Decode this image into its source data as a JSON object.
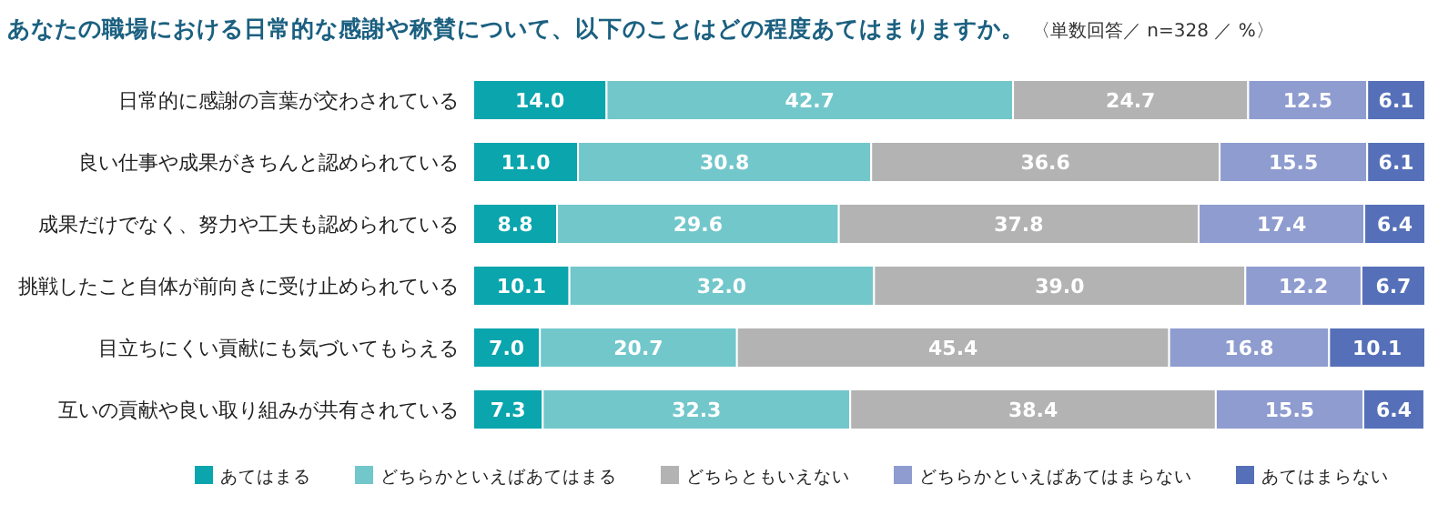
{
  "chart_data": {
    "type": "bar",
    "orientation": "horizontal",
    "stacked": true,
    "title": "あなたの職場における日常的な感謝や称賛について、以下のことはどの程度あてはまりますか。",
    "subtitle": "〈単数回答／ n=328 ／ %〉",
    "categories": [
      "日常的に感謝の言葉が交わされている",
      "良い仕事や成果がきちんと認められている",
      "成果だけでなく、努力や工夫も認められている",
      "挑戦したこと自体が前向きに受け止められている",
      "目立ちにくい貢献にも気づいてもらえる",
      "互いの貢献や良い取り組みが共有されている"
    ],
    "series": [
      {
        "name": "あてはまる",
        "color": "#0aa5ad",
        "values": [
          14.0,
          11.0,
          8.8,
          10.1,
          7.0,
          7.3
        ],
        "value_labels": [
          "14.0",
          "11.0",
          "8.8",
          "10.1",
          "7.0",
          "7.3"
        ]
      },
      {
        "name": "どちらかといえばあてはまる",
        "color": "#72c7cb",
        "values": [
          42.7,
          30.8,
          29.6,
          32.0,
          20.7,
          32.3
        ],
        "value_labels": [
          "42.7",
          "30.8",
          "29.6",
          "32.0",
          "20.7",
          "32.3"
        ]
      },
      {
        "name": "どちらともいえない",
        "color": "#b3b3b3",
        "values": [
          24.7,
          36.6,
          37.8,
          39.0,
          45.4,
          38.4
        ],
        "value_labels": [
          "24.7",
          "36.6",
          "37.8",
          "39.0",
          "45.4",
          "38.4"
        ]
      },
      {
        "name": "どちらかといえばあてはまらない",
        "color": "#8e9ccf",
        "values": [
          12.5,
          15.5,
          17.4,
          12.2,
          16.8,
          15.5
        ],
        "value_labels": [
          "12.5",
          "15.5",
          "17.4",
          "12.2",
          "16.8",
          "15.5"
        ]
      },
      {
        "name": "あてはまらない",
        "color": "#5570b8",
        "values": [
          6.1,
          6.1,
          6.4,
          6.7,
          10.1,
          6.4
        ],
        "value_labels": [
          "6.1",
          "6.1",
          "6.4",
          "6.7",
          "10.1",
          "6.4"
        ]
      }
    ],
    "xlim": [
      0,
      100
    ],
    "tick_labels": false,
    "legend": "bottom"
  }
}
